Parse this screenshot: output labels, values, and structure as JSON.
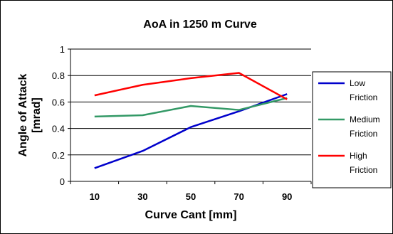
{
  "chart_data": {
    "type": "line",
    "title": "AoA in 1250 m Curve",
    "xlabel": "Curve Cant [mm]",
    "ylabel": [
      "Angle of Attack",
      "[mrad]"
    ],
    "categories": [
      "10",
      "30",
      "50",
      "70",
      "90"
    ],
    "ylim": [
      0,
      1
    ],
    "yticks": [
      "0",
      "0.2",
      "0.4",
      "0.6",
      "0.8",
      "1"
    ],
    "grid": true,
    "legend_position": "right",
    "series": [
      {
        "name": [
          "Low",
          "Friction"
        ],
        "color": "#0000cc",
        "values": [
          0.1,
          0.23,
          0.41,
          0.53,
          0.66
        ]
      },
      {
        "name": [
          "Medium",
          "Friction"
        ],
        "color": "#339966",
        "values": [
          0.49,
          0.5,
          0.57,
          0.54,
          0.63
        ]
      },
      {
        "name": [
          "High",
          "Friction"
        ],
        "color": "#ff0000",
        "values": [
          0.65,
          0.73,
          0.78,
          0.82,
          0.62
        ]
      }
    ]
  }
}
